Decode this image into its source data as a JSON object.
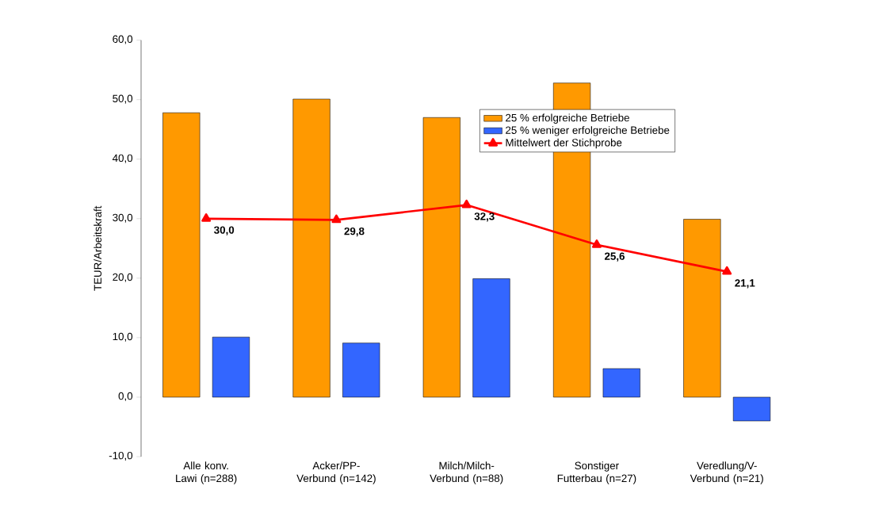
{
  "chart_data": {
    "type": "bar",
    "ylabel": "TEUR/Arbeitskraft",
    "categories": [
      "Alle konv. Lawi (n=288)",
      "Acker/PP-Verbund (n=142)",
      "Milch/Milch-Verbund (n=88)",
      "Sonstiger Futterbau (n=27)",
      "Veredlung/V-Verbund (n=21)"
    ],
    "series": [
      {
        "name": "25 % erfolgreiche Betriebe",
        "color": "#ff9900",
        "values": [
          47.8,
          50.1,
          47.0,
          52.8,
          29.9
        ]
      },
      {
        "name": "25 % weniger erfolgreiche Betriebe",
        "color": "#3366ff",
        "values": [
          10.1,
          9.1,
          19.9,
          4.8,
          -4.0
        ]
      },
      {
        "name": "Mittelwert der Stichprobe",
        "type": "line",
        "color": "#ff0000",
        "marker": "triangle",
        "values": [
          30.0,
          29.8,
          32.3,
          25.6,
          21.1
        ],
        "value_labels": [
          "30,0",
          "29,8",
          "32,3",
          "25,6",
          "21,1"
        ]
      }
    ],
    "ylim": [
      -10,
      60
    ],
    "yticks": [
      {
        "value": -10,
        "label": "-10,0"
      },
      {
        "value": 0,
        "label": "0,0"
      },
      {
        "value": 10,
        "label": "10,0"
      },
      {
        "value": 20,
        "label": "20,0"
      },
      {
        "value": 30,
        "label": "30,0"
      },
      {
        "value": 40,
        "label": "40,0"
      },
      {
        "value": 50,
        "label": "50,0"
      },
      {
        "value": 60,
        "label": "60,0"
      }
    ],
    "legend": "top right",
    "grid": false
  }
}
